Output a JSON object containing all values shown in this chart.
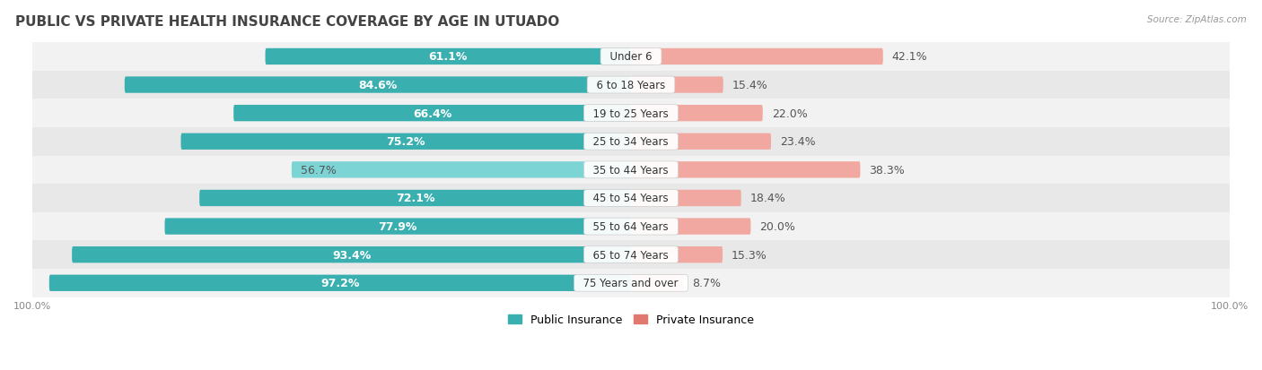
{
  "title": "PUBLIC VS PRIVATE HEALTH INSURANCE COVERAGE BY AGE IN UTUADO",
  "source": "Source: ZipAtlas.com",
  "categories": [
    "Under 6",
    "6 to 18 Years",
    "19 to 25 Years",
    "25 to 34 Years",
    "35 to 44 Years",
    "45 to 54 Years",
    "55 to 64 Years",
    "65 to 74 Years",
    "75 Years and over"
  ],
  "public_values": [
    61.1,
    84.6,
    66.4,
    75.2,
    56.7,
    72.1,
    77.9,
    93.4,
    97.2
  ],
  "private_values": [
    42.1,
    15.4,
    22.0,
    23.4,
    38.3,
    18.4,
    20.0,
    15.3,
    8.7
  ],
  "public_color_dark": "#3AAFAF",
  "public_color_light": "#7DD4D4",
  "private_color_dark": "#E07870",
  "private_color_light": "#F0A8A0",
  "bg_color": "#FFFFFF",
  "row_bg_even": "#F2F2F2",
  "row_bg_odd": "#E8E8E8",
  "axis_label_color": "#888888",
  "title_color": "#444444",
  "label_fontsize": 9,
  "title_fontsize": 11,
  "max_val": 100.0,
  "legend_labels": [
    "Public Insurance",
    "Private Insurance"
  ],
  "white_label_threshold": 60.0
}
